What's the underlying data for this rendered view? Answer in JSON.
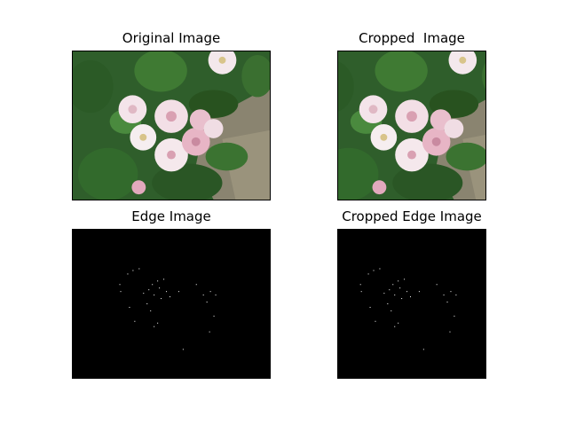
{
  "panels": [
    {
      "title": "Original Image"
    },
    {
      "title": "Cropped  Image"
    },
    {
      "title": "Edge Image"
    },
    {
      "title": "Cropped Edge Image"
    }
  ],
  "colors": {
    "figure_background": "#ffffff",
    "edge_background": "#000000",
    "edge_points": "#ffffff",
    "foliage_dark": "#2c5a2a",
    "foliage_light": "#4f8a3c",
    "petal": "#f4e4ea",
    "petal_pink": "#e3a7ba",
    "ground": "#8c8572"
  }
}
